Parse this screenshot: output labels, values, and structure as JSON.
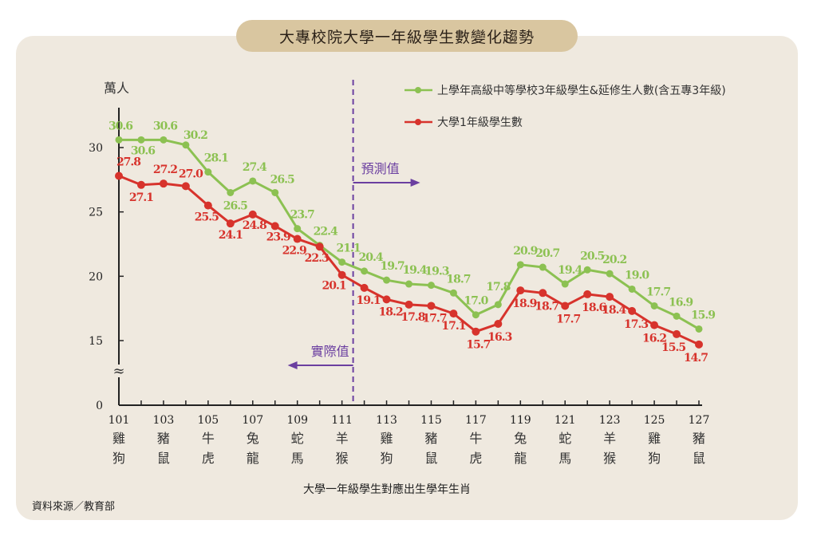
{
  "title": "大專校院大學一年級學生數變化趨勢",
  "source": "資料來源／教育部",
  "colors": {
    "green": "#8cc152",
    "red": "#d7332c",
    "purple": "#6b3fa0",
    "panel": "#efe9df",
    "pill": "#d9c6a0"
  },
  "annotations": {
    "forecast_label": "預測值",
    "actual_label": "實際值",
    "axis_break": "≈"
  },
  "chart_data": {
    "type": "line",
    "title": "大專校院大學一年級學生數變化趨勢",
    "xlabel": "大學一年級學生對應出生學年生肖",
    "ylabel": "萬人",
    "ylim": [
      0,
      32
    ],
    "axis_break": [
      0,
      13
    ],
    "yticks": [
      0,
      15,
      20,
      25,
      30
    ],
    "x": [
      101,
      102,
      103,
      104,
      105,
      106,
      107,
      108,
      109,
      110,
      111,
      112,
      113,
      114,
      115,
      116,
      117,
      118,
      119,
      120,
      121,
      122,
      123,
      124,
      125,
      126,
      127
    ],
    "xtick_labels": [
      {
        "year": "101",
        "zodiac1": "雞",
        "zodiac2": "狗"
      },
      {
        "year": "103",
        "zodiac1": "豬",
        "zodiac2": "鼠"
      },
      {
        "year": "105",
        "zodiac1": "牛",
        "zodiac2": "虎"
      },
      {
        "year": "107",
        "zodiac1": "兔",
        "zodiac2": "龍"
      },
      {
        "year": "109",
        "zodiac1": "蛇",
        "zodiac2": "馬"
      },
      {
        "year": "111",
        "zodiac1": "羊",
        "zodiac2": "猴"
      },
      {
        "year": "113",
        "zodiac1": "雞",
        "zodiac2": "狗"
      },
      {
        "year": "115",
        "zodiac1": "豬",
        "zodiac2": "鼠"
      },
      {
        "year": "117",
        "zodiac1": "牛",
        "zodiac2": "虎"
      },
      {
        "year": "119",
        "zodiac1": "兔",
        "zodiac2": "龍"
      },
      {
        "year": "121",
        "zodiac1": "蛇",
        "zodiac2": "馬"
      },
      {
        "year": "123",
        "zodiac1": "羊",
        "zodiac2": "猴"
      },
      {
        "year": "125",
        "zodiac1": "雞",
        "zodiac2": "狗"
      },
      {
        "year": "127",
        "zodiac1": "豬",
        "zodiac2": "鼠"
      }
    ],
    "forecast_start_x": 111.5,
    "legend_position": "top-right",
    "series": [
      {
        "name": "上學年高級中等學校3年級學生&延修生人數(含五專3年級)",
        "color": "#8cc152",
        "values": [
          30.6,
          30.6,
          30.6,
          30.2,
          28.1,
          26.5,
          27.4,
          26.5,
          23.7,
          22.4,
          21.1,
          20.4,
          19.7,
          19.4,
          19.3,
          18.7,
          17.0,
          17.8,
          20.9,
          20.7,
          19.4,
          20.5,
          20.2,
          19.0,
          17.7,
          16.9,
          15.9
        ],
        "labels": [
          "30.6",
          "30.6",
          "30.6",
          "30.2",
          "28.1",
          "26.5",
          "27.4",
          "26.5",
          "23.7",
          "22.4",
          "21.1",
          "20.4",
          "19.7",
          "19.4",
          "19.3",
          "18.7",
          "17.0",
          "17.8",
          "20.9",
          "20.7",
          "19.4",
          "20.5",
          "20.2",
          "19.0",
          "17.7",
          "16.9",
          "15.9"
        ]
      },
      {
        "name": "大學1年級學生數",
        "color": "#d7332c",
        "values": [
          27.8,
          27.1,
          27.2,
          27.0,
          25.5,
          24.1,
          24.8,
          23.9,
          22.9,
          22.3,
          20.1,
          19.1,
          18.2,
          17.8,
          17.7,
          17.1,
          15.7,
          16.3,
          18.9,
          18.7,
          17.7,
          18.6,
          18.4,
          17.3,
          16.2,
          15.5,
          14.7
        ],
        "labels": [
          "27.8",
          "27.1",
          "27.2",
          "27.0",
          "25.5",
          "24.1",
          "24.8",
          "23.9",
          "22.9",
          "22.3",
          "20.1",
          "19.1",
          "18.2",
          "17.8",
          "17.7",
          "17.1",
          "15.7",
          "16.3",
          "18.9",
          "18.7",
          "17.7",
          "18.6",
          "18.4",
          "17.3",
          "16.2",
          "15.5",
          "14.7"
        ]
      }
    ]
  }
}
